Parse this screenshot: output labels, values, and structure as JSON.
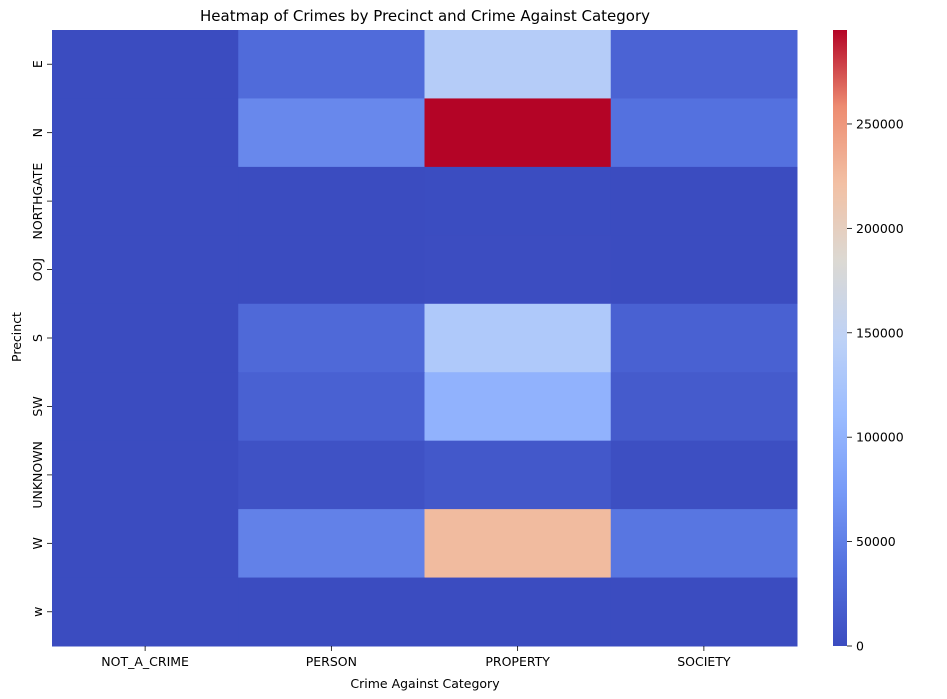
{
  "chart_data": {
    "type": "heatmap",
    "title": "Heatmap of Crimes by Precinct and Crime Against Category",
    "xlabel": "Crime Against Category",
    "ylabel": "Precinct",
    "x_categories": [
      "NOT_A_CRIME",
      "PERSON",
      "PROPERTY",
      "SOCIETY"
    ],
    "y_categories": [
      "E",
      "N",
      "NORTHGATE",
      "OOJ",
      "S",
      "SW",
      "UNKNOWN",
      "W",
      "w"
    ],
    "values": [
      [
        50,
        32000,
        138000,
        24000
      ],
      [
        60,
        58000,
        295000,
        38000
      ],
      [
        0,
        300,
        700,
        200
      ],
      [
        0,
        400,
        1200,
        300
      ],
      [
        50,
        30000,
        132000,
        22000
      ],
      [
        40,
        22000,
        100000,
        15000
      ],
      [
        20,
        6000,
        12000,
        3000
      ],
      [
        60,
        52000,
        225000,
        42000
      ],
      [
        0,
        100,
        300,
        50
      ]
    ],
    "colorbar": {
      "colormap": "coolwarm",
      "range": [
        0,
        295000
      ],
      "ticks": [
        0,
        50000,
        100000,
        150000,
        200000,
        250000
      ],
      "tick_labels": [
        "0",
        "50000",
        "100000",
        "150000",
        "200000",
        "250000"
      ]
    },
    "grid": false
  }
}
